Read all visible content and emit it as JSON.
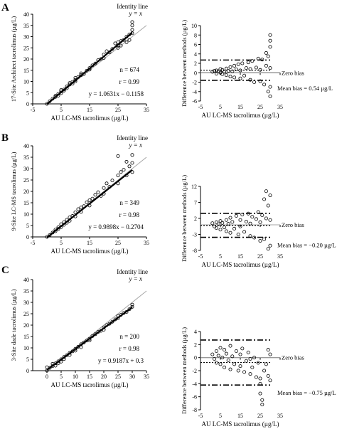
{
  "chart_data": [
    {
      "type": "scatter",
      "panel": "A",
      "xlabel": "AU LC-MS tacrolimus (µg/L)",
      "ylabel": "17-Site Architect tacrolimus (µg/L)",
      "xlim": [
        -5,
        35
      ],
      "ylim": [
        0,
        40
      ],
      "xticks": [
        -5,
        5,
        15,
        25,
        35
      ],
      "yticks": [
        0,
        5,
        10,
        15,
        20,
        25,
        30,
        35,
        40
      ],
      "identity_label": "Identity line",
      "identity_eq": "y = x",
      "stats": {
        "n": "n = 674",
        "r": "r = 0.99",
        "eq": "y = 1.0631x − 0.1158"
      },
      "slope": 1.0631,
      "intercept": -0.1158,
      "points": [
        [
          0,
          0
        ],
        [
          1,
          1.2
        ],
        [
          2,
          2.3
        ],
        [
          3,
          3.1
        ],
        [
          3,
          3.6
        ],
        [
          4,
          4.5
        ],
        [
          4,
          3.7
        ],
        [
          5,
          5.6
        ],
        [
          5,
          4.8
        ],
        [
          5,
          6.2
        ],
        [
          6,
          6.4
        ],
        [
          6,
          5.9
        ],
        [
          7,
          7.8
        ],
        [
          7,
          7.0
        ],
        [
          8,
          8.6
        ],
        [
          8,
          9.3
        ],
        [
          9,
          9.8
        ],
        [
          9,
          9.0
        ],
        [
          10,
          10.7
        ],
        [
          10,
          11.6
        ],
        [
          10,
          10.0
        ],
        [
          11,
          12.0
        ],
        [
          12,
          12.8
        ],
        [
          12,
          13.6
        ],
        [
          13,
          13.3
        ],
        [
          14,
          14.8
        ],
        [
          15,
          16.0
        ],
        [
          15,
          15.3
        ],
        [
          16,
          17.2
        ],
        [
          17,
          18.0
        ],
        [
          18,
          19.5
        ],
        [
          19,
          20.0
        ],
        [
          20,
          20.5
        ],
        [
          20,
          22.0
        ],
        [
          21,
          23.5
        ],
        [
          22,
          23.0
        ],
        [
          23,
          24.5
        ],
        [
          25,
          26.0
        ],
        [
          25,
          27.5
        ],
        [
          26,
          28.0
        ],
        [
          27,
          28.5
        ],
        [
          28,
          30.0
        ],
        [
          29,
          31.0
        ],
        [
          30,
          31.5
        ],
        [
          30,
          33.0
        ],
        [
          30,
          36.5
        ],
        [
          30,
          35.0
        ],
        [
          29,
          28.5
        ],
        [
          28,
          27.5
        ],
        [
          26,
          26.0
        ],
        [
          25,
          25.0
        ],
        [
          24,
          27.0
        ]
      ]
    },
    {
      "type": "scatter",
      "panel": "A",
      "xlabel": "AU LC-MS tacrolimus (µg/L)",
      "ylabel": "Difference between methods (µg/L)",
      "xlim": [
        -5,
        35
      ],
      "ylim": [
        -6,
        10
      ],
      "xticks": [
        -5,
        5,
        15,
        25,
        35
      ],
      "yticks": [
        -6,
        -4,
        -2,
        0,
        2,
        4,
        6,
        8,
        10
      ],
      "zero_label": "Zero bias",
      "mean_label": "Mean bias = 0.54 µg/L",
      "mean_bias": 0.54,
      "loa": [
        2.7,
        -1.6
      ],
      "points": [
        [
          1,
          0.2
        ],
        [
          2,
          0.4
        ],
        [
          3,
          -0.2
        ],
        [
          3,
          0.5
        ],
        [
          4,
          0.3
        ],
        [
          5,
          0.0
        ],
        [
          5,
          0.8
        ],
        [
          6,
          -0.3
        ],
        [
          6,
          0.6
        ],
        [
          7,
          0.2
        ],
        [
          8,
          0.9
        ],
        [
          8,
          -0.5
        ],
        [
          9,
          0.4
        ],
        [
          10,
          1.2
        ],
        [
          10,
          -0.8
        ],
        [
          11,
          0.3
        ],
        [
          12,
          1.5
        ],
        [
          12,
          -1.0
        ],
        [
          13,
          0.7
        ],
        [
          14,
          1.8
        ],
        [
          15,
          -1.2
        ],
        [
          15,
          0.5
        ],
        [
          16,
          2.0
        ],
        [
          17,
          -0.6
        ],
        [
          18,
          1.0
        ],
        [
          19,
          2.2
        ],
        [
          20,
          -1.5
        ],
        [
          20,
          0.8
        ],
        [
          21,
          2.5
        ],
        [
          22,
          -2.0
        ],
        [
          23,
          1.1
        ],
        [
          24,
          3.0
        ],
        [
          25,
          -1.8
        ],
        [
          25,
          0.6
        ],
        [
          26,
          2.8
        ],
        [
          27,
          -2.5
        ],
        [
          28,
          1.5
        ],
        [
          29,
          3.5
        ],
        [
          30,
          -3.0
        ],
        [
          30,
          1.0
        ],
        [
          30,
          5.5
        ],
        [
          30,
          8.0
        ],
        [
          30,
          -5.0
        ],
        [
          30,
          6.8
        ],
        [
          29,
          -4.0
        ],
        [
          28,
          4.2
        ]
      ]
    },
    {
      "type": "scatter",
      "panel": "B",
      "xlabel": "AU LC-MS tacrolimus (µg/L)",
      "ylabel": "9-Site LC-MS tacrolimus (µg/L)",
      "xlim": [
        -5,
        35
      ],
      "ylim": [
        0,
        40
      ],
      "xticks": [
        -5,
        5,
        15,
        25,
        35
      ],
      "yticks": [
        0,
        5,
        10,
        15,
        20,
        25,
        30,
        35,
        40
      ],
      "identity_label": "Identity line",
      "identity_eq": "y = x",
      "stats": {
        "n": "n = 349",
        "r": "r = 0.98",
        "eq": "y = 0.9898x − 0.2704"
      },
      "slope": 0.9898,
      "intercept": -0.2704,
      "points": [
        [
          0,
          0
        ],
        [
          1,
          0.8
        ],
        [
          2,
          1.9
        ],
        [
          3,
          3.2
        ],
        [
          3,
          2.5
        ],
        [
          4,
          4.2
        ],
        [
          4,
          3.5
        ],
        [
          5,
          5.6
        ],
        [
          5,
          4.3
        ],
        [
          6,
          6.5
        ],
        [
          6,
          5.3
        ],
        [
          7,
          7.5
        ],
        [
          7,
          6.2
        ],
        [
          8,
          8.6
        ],
        [
          8,
          7.1
        ],
        [
          9,
          9.2
        ],
        [
          10,
          10.8
        ],
        [
          10,
          9.0
        ],
        [
          11,
          12.2
        ],
        [
          12,
          12.9
        ],
        [
          12,
          11.0
        ],
        [
          13,
          13.5
        ],
        [
          14,
          15.2
        ],
        [
          15,
          16.1
        ],
        [
          15,
          13.8
        ],
        [
          16,
          16.8
        ],
        [
          17,
          18.5
        ],
        [
          18,
          19.6
        ],
        [
          19,
          18.0
        ],
        [
          20,
          21.5
        ],
        [
          20,
          19.0
        ],
        [
          21,
          23.5
        ],
        [
          22,
          22.0
        ],
        [
          23,
          24.8
        ],
        [
          25,
          27.0
        ],
        [
          25,
          23.5
        ],
        [
          26,
          28.5
        ],
        [
          27,
          29.5
        ],
        [
          28,
          27.0
        ],
        [
          29,
          31.0
        ],
        [
          30,
          32.5
        ],
        [
          30,
          28.5
        ],
        [
          25,
          35.5
        ],
        [
          30,
          36.0
        ],
        [
          28,
          33.0
        ]
      ]
    },
    {
      "type": "scatter",
      "panel": "B",
      "xlabel": "AU LC-MS tacrolimus (µg/L)",
      "ylabel": "Difference between methods (µg/L)",
      "xlim": [
        -5,
        35
      ],
      "ylim": [
        -8,
        12
      ],
      "xticks": [
        -5,
        5,
        15,
        25,
        35
      ],
      "yticks": [
        -8,
        -3,
        2,
        7,
        12
      ],
      "zero_label": "Zero bias",
      "mean_label": "Mean bias = −0.20 µg/L",
      "mean_bias": -0.2,
      "loa": [
        3.6,
        -3.9
      ],
      "points": [
        [
          1,
          0.5
        ],
        [
          2,
          -0.5
        ],
        [
          3,
          0.8
        ],
        [
          3,
          -1.0
        ],
        [
          4,
          0.2
        ],
        [
          5,
          1.2
        ],
        [
          5,
          -1.5
        ],
        [
          6,
          0.6
        ],
        [
          7,
          -0.8
        ],
        [
          8,
          1.5
        ],
        [
          8,
          -2.0
        ],
        [
          9,
          0.3
        ],
        [
          10,
          2.2
        ],
        [
          10,
          -2.5
        ],
        [
          11,
          0.9
        ],
        [
          12,
          -1.2
        ],
        [
          13,
          2.8
        ],
        [
          14,
          -3.0
        ],
        [
          15,
          1.5
        ],
        [
          15,
          -0.5
        ],
        [
          16,
          3.2
        ],
        [
          17,
          -2.2
        ],
        [
          18,
          1.0
        ],
        [
          19,
          3.5
        ],
        [
          20,
          -3.5
        ],
        [
          20,
          0.4
        ],
        [
          21,
          2.5
        ],
        [
          22,
          -4.0
        ],
        [
          23,
          1.8
        ],
        [
          24,
          4.0
        ],
        [
          25,
          -5.0
        ],
        [
          25,
          0.8
        ],
        [
          26,
          3.0
        ],
        [
          27,
          -4.5
        ],
        [
          28,
          2.0
        ],
        [
          29,
          6.0
        ],
        [
          30,
          -6.5
        ],
        [
          30,
          1.5
        ],
        [
          28,
          10.5
        ],
        [
          27,
          8.0
        ],
        [
          30,
          9.2
        ],
        [
          29,
          -7.5
        ]
      ]
    },
    {
      "type": "scatter",
      "panel": "C",
      "xlabel": "AU LC-MS tacrolimus (µg/L)",
      "ylabel": "3-Site dade tacrolimus (µg/L)",
      "xlim": [
        -5,
        35
      ],
      "ylim": [
        0,
        40
      ],
      "xticks": [
        0,
        5,
        10,
        15,
        20,
        25,
        30,
        35
      ],
      "yticks": [
        0,
        5,
        10,
        15,
        20,
        25,
        30,
        35,
        40
      ],
      "identity_label": "Identity line",
      "identity_eq": "y = x",
      "stats": {
        "n": "n = 200",
        "r": "r = 0.98",
        "eq": "y = 0.9187x + 0.3"
      },
      "slope": 0.9187,
      "intercept": 0.3,
      "points": [
        [
          0,
          0
        ],
        [
          0,
          1.5
        ],
        [
          1,
          1.2
        ],
        [
          2,
          2.0
        ],
        [
          2,
          3.0
        ],
        [
          3,
          3.2
        ],
        [
          3,
          2.2
        ],
        [
          4,
          4.1
        ],
        [
          4,
          3.3
        ],
        [
          5,
          5.0
        ],
        [
          5,
          4.0
        ],
        [
          6,
          6.0
        ],
        [
          6,
          5.1
        ],
        [
          7,
          6.8
        ],
        [
          8,
          7.8
        ],
        [
          8,
          6.9
        ],
        [
          9,
          8.5
        ],
        [
          10,
          9.6
        ],
        [
          10,
          8.8
        ],
        [
          11,
          10.5
        ],
        [
          12,
          11.6
        ],
        [
          12,
          10.3
        ],
        [
          13,
          12.4
        ],
        [
          14,
          13.2
        ],
        [
          15,
          14.0
        ],
        [
          15,
          13.3
        ],
        [
          16,
          15.2
        ],
        [
          17,
          16.0
        ],
        [
          18,
          17.0
        ],
        [
          19,
          17.5
        ],
        [
          20,
          19.0
        ],
        [
          20,
          18.0
        ],
        [
          21,
          20.0
        ],
        [
          22,
          20.6
        ],
        [
          23,
          21.5
        ],
        [
          24,
          22.5
        ],
        [
          25,
          23.0
        ],
        [
          25,
          24.0
        ],
        [
          26,
          24.5
        ],
        [
          27,
          25.3
        ],
        [
          28,
          25.8
        ],
        [
          29,
          27.0
        ],
        [
          30,
          28.0
        ],
        [
          30,
          29.0
        ]
      ]
    },
    {
      "type": "scatter",
      "panel": "C",
      "xlabel": "AU LC-MS tacrolimus (µg/L)",
      "ylabel": "Difference between methods (µg/L)",
      "xlim": [
        -5,
        35
      ],
      "ylim": [
        -8,
        4
      ],
      "xticks": [
        -5,
        5,
        15,
        25,
        35
      ],
      "yticks": [
        -8,
        -6,
        -4,
        -2,
        0,
        2,
        4
      ],
      "zero_label": "Zero bias",
      "mean_label": "Mean bias = −0.75 µg/L",
      "mean_bias": -0.75,
      "loa": [
        2.7,
        -4.2
      ],
      "points": [
        [
          1,
          0.5
        ],
        [
          2,
          -0.2
        ],
        [
          3,
          1.0
        ],
        [
          3,
          -0.8
        ],
        [
          4,
          0.3
        ],
        [
          5,
          1.5
        ],
        [
          5,
          -1.0
        ],
        [
          6,
          0.0
        ],
        [
          7,
          1.2
        ],
        [
          7,
          -1.5
        ],
        [
          8,
          0.6
        ],
        [
          9,
          -0.4
        ],
        [
          10,
          1.8
        ],
        [
          10,
          -1.8
        ],
        [
          11,
          0.2
        ],
        [
          12,
          -1.0
        ],
        [
          13,
          1.0
        ],
        [
          14,
          -2.0
        ],
        [
          15,
          0.5
        ],
        [
          15,
          -1.3
        ],
        [
          16,
          1.4
        ],
        [
          17,
          -2.2
        ],
        [
          18,
          -0.5
        ],
        [
          19,
          0.8
        ],
        [
          20,
          -2.5
        ],
        [
          20,
          -0.2
        ],
        [
          21,
          -1.5
        ],
        [
          22,
          0.0
        ],
        [
          23,
          -3.0
        ],
        [
          24,
          -0.8
        ],
        [
          25,
          -4.0
        ],
        [
          25,
          -5.5
        ],
        [
          26,
          -6.5
        ],
        [
          26,
          -7.2
        ],
        [
          25,
          -3.2
        ],
        [
          27,
          -2.0
        ],
        [
          28,
          -1.0
        ],
        [
          29,
          -2.8
        ],
        [
          30,
          -3.5
        ],
        [
          30,
          0.5
        ],
        [
          29,
          1.2
        ]
      ]
    }
  ],
  "panel_labels": {
    "a": "A",
    "b": "B",
    "c": "C"
  }
}
